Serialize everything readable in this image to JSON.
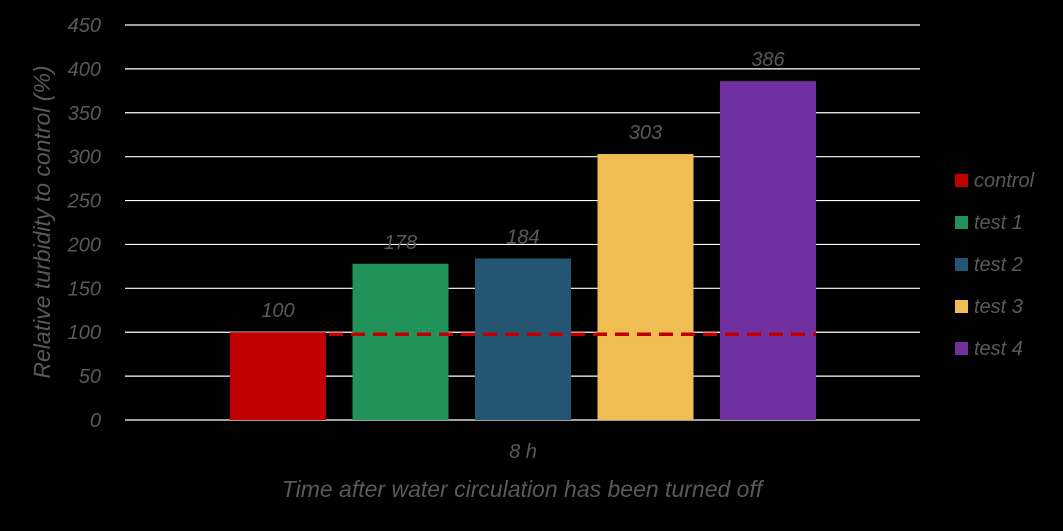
{
  "chart_data": {
    "type": "bar",
    "title": "",
    "xlabel": "Time after water circulation has been turned off",
    "ylabel": "Relative turbidity to control (%)",
    "categories": [
      "8 h"
    ],
    "ylim": [
      0,
      450
    ],
    "ytick_step": 50,
    "yticks": [
      "0",
      "50",
      "100",
      "150",
      "200",
      "250",
      "300",
      "350",
      "400",
      "450"
    ],
    "grid": true,
    "legend_position": "right",
    "series": [
      {
        "name": "control",
        "values": [
          100
        ],
        "label": "100",
        "color": "#c00000"
      },
      {
        "name": "test 1",
        "values": [
          178
        ],
        "label": "178",
        "color": "#21925a"
      },
      {
        "name": "test 2",
        "values": [
          184
        ],
        "label": "184",
        "color": "#245673"
      },
      {
        "name": "test 3",
        "values": [
          303
        ],
        "label": "303",
        "color": "#f0bd52"
      },
      {
        "name": "test 4",
        "values": [
          386
        ],
        "label": "386",
        "color": "#7030a0"
      }
    ],
    "reference_line": {
      "value": 100,
      "color": "#c00000",
      "style": "dashed"
    }
  }
}
